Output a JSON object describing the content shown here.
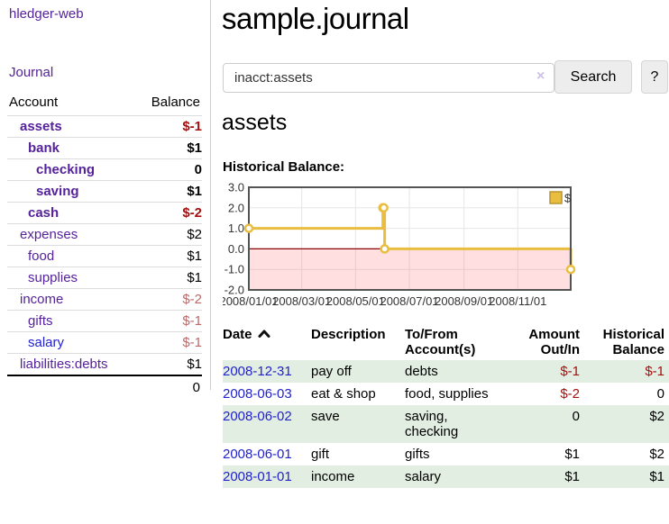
{
  "app": {
    "title": "hledger-web"
  },
  "colors": {
    "link_purple": "#55229b",
    "link_blue": "#2222cc",
    "negative": "#a31111",
    "negative_dim": "#bb6a6a",
    "row_stripe_green": "#e2eee2",
    "chart_gold": "#e9bd40",
    "chart_negative_fill": "#fbdcdc",
    "chart_zero_line": "#8b0000"
  },
  "sidebar": {
    "journal_link": "Journal",
    "accounts_table": {
      "headers": {
        "account": "Account",
        "balance": "Balance"
      },
      "rows": [
        {
          "name": "assets",
          "depth": 1,
          "bold": true,
          "balance": "$-1",
          "balance_style": "neg"
        },
        {
          "name": "bank",
          "depth": 2,
          "bold": true,
          "balance": "$1",
          "balance_style": "pos"
        },
        {
          "name": "checking",
          "depth": 3,
          "bold": true,
          "balance": "0",
          "balance_style": "pos"
        },
        {
          "name": "saving",
          "depth": 3,
          "bold": true,
          "balance": "$1",
          "balance_style": "pos"
        },
        {
          "name": "cash",
          "depth": 2,
          "bold": true,
          "balance": "$-2",
          "balance_style": "neg"
        },
        {
          "name": "expenses",
          "depth": 1,
          "bold": false,
          "balance": "$2",
          "balance_style": "pos"
        },
        {
          "name": "food",
          "depth": 2,
          "bold": false,
          "balance": "$1",
          "balance_style": "pos"
        },
        {
          "name": "supplies",
          "depth": 2,
          "bold": false,
          "balance": "$1",
          "balance_style": "pos"
        },
        {
          "name": "income",
          "depth": 1,
          "bold": false,
          "balance": "$-2",
          "balance_style": "neg-dim"
        },
        {
          "name": "gifts",
          "depth": 2,
          "bold": false,
          "balance": "$-1",
          "balance_style": "neg-dim"
        },
        {
          "name": "salary",
          "depth": 2,
          "bold": false,
          "balance": "$-1",
          "balance_style": "neg-dim",
          "link_style": "unvisited"
        },
        {
          "name": "liabilities:debts",
          "depth": 1,
          "bold": false,
          "balance": "$1",
          "balance_style": "pos"
        }
      ],
      "total": "0"
    }
  },
  "main": {
    "title": "sample.journal",
    "search": {
      "value": "inacct:assets",
      "clear_icon": "×",
      "search_button": "Search",
      "help_button": "?"
    },
    "account_heading": "assets",
    "chart_label": "Historical Balance:",
    "chart_data": {
      "type": "line",
      "step": true,
      "title": "Historical Balance:",
      "series": [
        {
          "name": "$",
          "color": "#e9bd40",
          "points": [
            {
              "date": "2008-01-01",
              "value": 1
            },
            {
              "date": "2008-06-01",
              "value": 2
            },
            {
              "date": "2008-06-02",
              "value": 2
            },
            {
              "date": "2008-06-03",
              "value": 0
            },
            {
              "date": "2008-12-31",
              "value": -1
            }
          ]
        }
      ],
      "ylim": [
        -2,
        3
      ],
      "yticks": [
        {
          "value": 3,
          "label": "3.0"
        },
        {
          "value": 2,
          "label": "2.0"
        },
        {
          "value": 1,
          "label": "1.0"
        },
        {
          "value": 0,
          "label": "0.0"
        },
        {
          "value": -1,
          "label": "-1.0"
        },
        {
          "value": -2,
          "label": "-2.0"
        }
      ],
      "xrange": [
        "2008-01-01",
        "2008-12-31"
      ],
      "xticks": [
        {
          "date": "2008-01-01",
          "label": "2008/01/01"
        },
        {
          "date": "2008-03-01",
          "label": "2008/03/01"
        },
        {
          "date": "2008-05-01",
          "label": "2008/05/01"
        },
        {
          "date": "2008-07-01",
          "label": "2008/07/01"
        },
        {
          "date": "2008-09-01",
          "label": "2008/09/01"
        },
        {
          "date": "2008-11-01",
          "label": "2008/11/01"
        }
      ],
      "grid": true,
      "legend": {
        "label": "$",
        "position": "top-right"
      },
      "negative_region_shaded": true
    },
    "register_table": {
      "headers": [
        {
          "label": "Date",
          "sort": "asc",
          "align": "left"
        },
        {
          "label": "Description",
          "align": "left"
        },
        {
          "label": "To/From\nAccount(s)",
          "align": "left"
        },
        {
          "label": "Amount\nOut/In",
          "align": "right"
        },
        {
          "label": "Historical\nBalance",
          "align": "right"
        }
      ],
      "rows": [
        {
          "date": "2008-12-31",
          "description": "pay off",
          "accounts": "debts",
          "amount": "$-1",
          "amount_style": "neg",
          "balance": "$-1",
          "balance_style": "neg"
        },
        {
          "date": "2008-06-03",
          "description": "eat & shop",
          "accounts": "food, supplies",
          "amount": "$-2",
          "amount_style": "neg",
          "balance": "0",
          "balance_style": "pos"
        },
        {
          "date": "2008-06-02",
          "description": "save",
          "accounts": "saving,\nchecking",
          "amount": "0",
          "amount_style": "pos",
          "balance": "$2",
          "balance_style": "pos"
        },
        {
          "date": "2008-06-01",
          "description": "gift",
          "accounts": "gifts",
          "amount": "$1",
          "amount_style": "pos",
          "balance": "$2",
          "balance_style": "pos"
        },
        {
          "date": "2008-01-01",
          "description": "income",
          "accounts": "salary",
          "amount": "$1",
          "amount_style": "pos",
          "balance": "$1",
          "balance_style": "pos"
        }
      ]
    }
  }
}
